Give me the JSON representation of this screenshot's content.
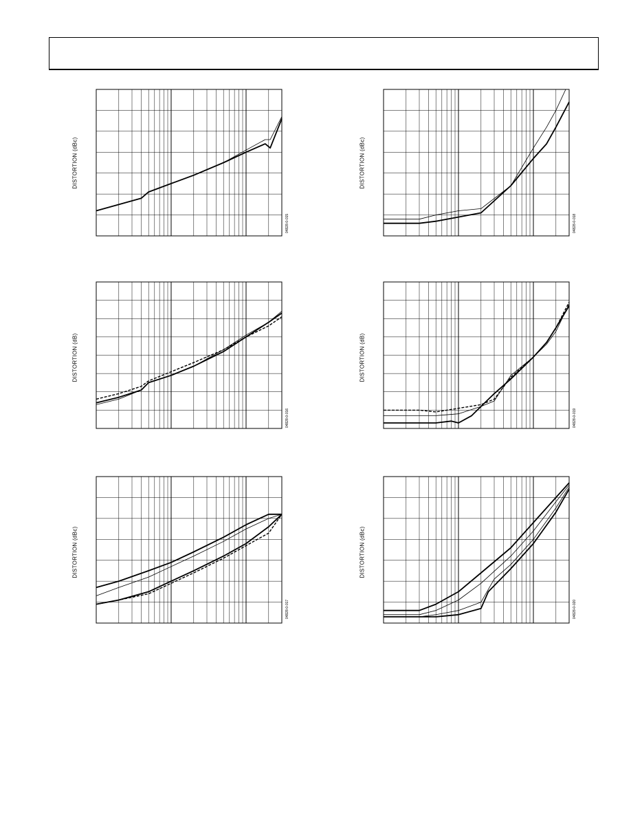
{
  "header": {
    "title": ""
  },
  "chart_data": [
    {
      "type": "line",
      "ylabel": "DISTORTION (dBc)",
      "figure_id": "04828-0-015",
      "xscale": "log",
      "xlim": [
        0.1,
        30
      ],
      "ylim": [
        -100,
        -30
      ],
      "series": [
        {
          "name": "",
          "style": "bold",
          "x": [
            0.1,
            0.2,
            0.4,
            0.5,
            1,
            2,
            5,
            10,
            18,
            21,
            30
          ],
          "y": [
            -88,
            -85,
            -82,
            -79,
            -75,
            -71,
            -65,
            -60,
            -56,
            -58,
            -44
          ]
        },
        {
          "name": "",
          "style": "thin",
          "x": [
            0.1,
            0.2,
            0.4,
            0.5,
            1,
            2,
            5,
            10,
            18,
            21,
            30
          ],
          "y": [
            -88,
            -85,
            -82,
            -79,
            -75,
            -71,
            -65,
            -59,
            -54,
            -54,
            -43
          ]
        }
      ]
    },
    {
      "type": "line",
      "ylabel": "DISTORTION (dBc)",
      "figure_id": "04828-0-018",
      "xscale": "log",
      "xlim": [
        0.1,
        30
      ],
      "ylim": [
        -100,
        -30
      ],
      "series": [
        {
          "name": "",
          "style": "bold",
          "x": [
            0.1,
            0.3,
            0.5,
            1,
            2,
            5,
            10,
            15,
            20,
            30
          ],
          "y": [
            -94,
            -94,
            -93,
            -91,
            -89,
            -76,
            -63,
            -56,
            -48,
            -36
          ]
        },
        {
          "name": "",
          "style": "thin",
          "x": [
            0.1,
            0.3,
            0.5,
            1,
            2,
            5,
            10,
            15,
            20,
            27
          ],
          "y": [
            -92,
            -92,
            -90,
            -88,
            -87,
            -76,
            -58,
            -48,
            -40,
            -30
          ]
        }
      ]
    },
    {
      "type": "line",
      "ylabel": "DISTORTION (dB)",
      "figure_id": "04828-0-016",
      "xscale": "log",
      "xlim": [
        0.1,
        30
      ],
      "ylim": [
        -110,
        -30
      ],
      "series": [
        {
          "name": "",
          "style": "bold",
          "x": [
            0.1,
            0.2,
            0.4,
            0.5,
            1,
            2,
            5,
            10,
            20,
            30
          ],
          "y": [
            -96,
            -93,
            -89,
            -85,
            -81,
            -76,
            -68,
            -60,
            -52,
            -47
          ]
        },
        {
          "name": "",
          "style": "dashed",
          "x": [
            0.1,
            0.2,
            0.4,
            0.5,
            1,
            2,
            5,
            10,
            20,
            30
          ],
          "y": [
            -94,
            -91,
            -87,
            -84,
            -79,
            -74,
            -67,
            -60,
            -54,
            -49
          ]
        },
        {
          "name": "",
          "style": "thin",
          "x": [
            0.1,
            0.2,
            0.4,
            0.5,
            1,
            2,
            5,
            10,
            20,
            30
          ],
          "y": [
            -97,
            -94,
            -89,
            -85,
            -81,
            -76,
            -67,
            -59,
            -52,
            -46
          ]
        }
      ]
    },
    {
      "type": "line",
      "ylabel": "DISTORTION (dB)",
      "figure_id": "04828-0-019",
      "xscale": "log",
      "xlim": [
        0.1,
        30
      ],
      "ylim": [
        -110,
        -30
      ],
      "series": [
        {
          "name": "",
          "style": "dashed",
          "x": [
            0.1,
            0.3,
            0.5,
            1,
            2,
            3,
            5,
            10,
            15,
            20,
            30
          ],
          "y": [
            -100,
            -100,
            -101,
            -99,
            -97,
            -94,
            -82,
            -71,
            -63,
            -55,
            -41
          ]
        },
        {
          "name": "",
          "style": "thin",
          "x": [
            0.1,
            0.3,
            0.5,
            1,
            2,
            3,
            5,
            10,
            15,
            20,
            30
          ],
          "y": [
            -103,
            -103,
            -103,
            -102,
            -98,
            -95,
            -81,
            -71,
            -64,
            -57,
            -42
          ]
        },
        {
          "name": "",
          "style": "bold",
          "x": [
            0.1,
            0.3,
            0.5,
            0.8,
            1,
            1.5,
            2,
            3,
            5,
            10,
            15,
            20,
            30
          ],
          "y": [
            -107,
            -107,
            -107,
            -106,
            -107,
            -103,
            -98,
            -91,
            -83,
            -71,
            -63,
            -55,
            -43
          ]
        }
      ]
    },
    {
      "type": "line",
      "ylabel": "DISTORTION (dBc)",
      "figure_id": "04828-0-017",
      "xscale": "log",
      "xlim": [
        0.1,
        30
      ],
      "ylim": [
        -110,
        -40
      ],
      "series": [
        {
          "name": "",
          "style": "bold",
          "x": [
            0.1,
            0.2,
            0.5,
            1,
            2,
            5,
            10,
            20,
            30
          ],
          "y": [
            -93,
            -90,
            -85,
            -81,
            -76,
            -69,
            -63,
            -58,
            -58
          ]
        },
        {
          "name": "",
          "style": "thin",
          "x": [
            0.1,
            0.2,
            0.5,
            1,
            2,
            5,
            10,
            20,
            30
          ],
          "y": [
            -97,
            -93,
            -88,
            -83,
            -78,
            -71,
            -65,
            -60,
            -58
          ]
        },
        {
          "name": "",
          "style": "bold",
          "x": [
            0.1,
            0.2,
            0.5,
            1,
            2,
            5,
            10,
            20,
            30
          ],
          "y": [
            -101,
            -99,
            -95,
            -90,
            -85,
            -78,
            -72,
            -64,
            -58
          ]
        },
        {
          "name": "",
          "style": "dashed",
          "x": [
            0.1,
            0.2,
            0.5,
            1,
            2,
            5,
            10,
            20,
            30
          ],
          "y": [
            -101,
            -99,
            -96,
            -91,
            -86,
            -79,
            -73,
            -67,
            -58
          ]
        }
      ]
    },
    {
      "type": "line",
      "ylabel": "DISTORTION (dBc)",
      "figure_id": "04828-0-020",
      "xscale": "log",
      "xlim": [
        0.1,
        30
      ],
      "ylim": [
        -110,
        -40
      ],
      "series": [
        {
          "name": "",
          "style": "bold",
          "x": [
            0.1,
            0.3,
            0.5,
            1,
            2,
            5,
            10,
            20,
            30
          ],
          "y": [
            -104,
            -104,
            -101,
            -95,
            -86,
            -74,
            -62,
            -50,
            -43
          ]
        },
        {
          "name": "",
          "style": "thin",
          "x": [
            0.1,
            0.3,
            0.5,
            1,
            2,
            5,
            10,
            20,
            30
          ],
          "y": [
            -106,
            -106,
            -104,
            -99,
            -91,
            -78,
            -66,
            -52,
            -44
          ]
        },
        {
          "name": "",
          "style": "thin",
          "x": [
            0.1,
            0.3,
            0.5,
            1,
            2,
            3,
            5,
            10,
            20,
            30
          ],
          "y": [
            -107,
            -107,
            -106,
            -104,
            -100,
            -89,
            -82,
            -70,
            -55,
            -45
          ]
        },
        {
          "name": "",
          "style": "bold",
          "x": [
            0.1,
            0.3,
            0.5,
            1,
            2,
            2.5,
            5,
            10,
            20,
            30
          ],
          "y": [
            -107,
            -107,
            -107,
            -106,
            -103,
            -95,
            -84,
            -72,
            -57,
            -46
          ]
        }
      ]
    }
  ]
}
